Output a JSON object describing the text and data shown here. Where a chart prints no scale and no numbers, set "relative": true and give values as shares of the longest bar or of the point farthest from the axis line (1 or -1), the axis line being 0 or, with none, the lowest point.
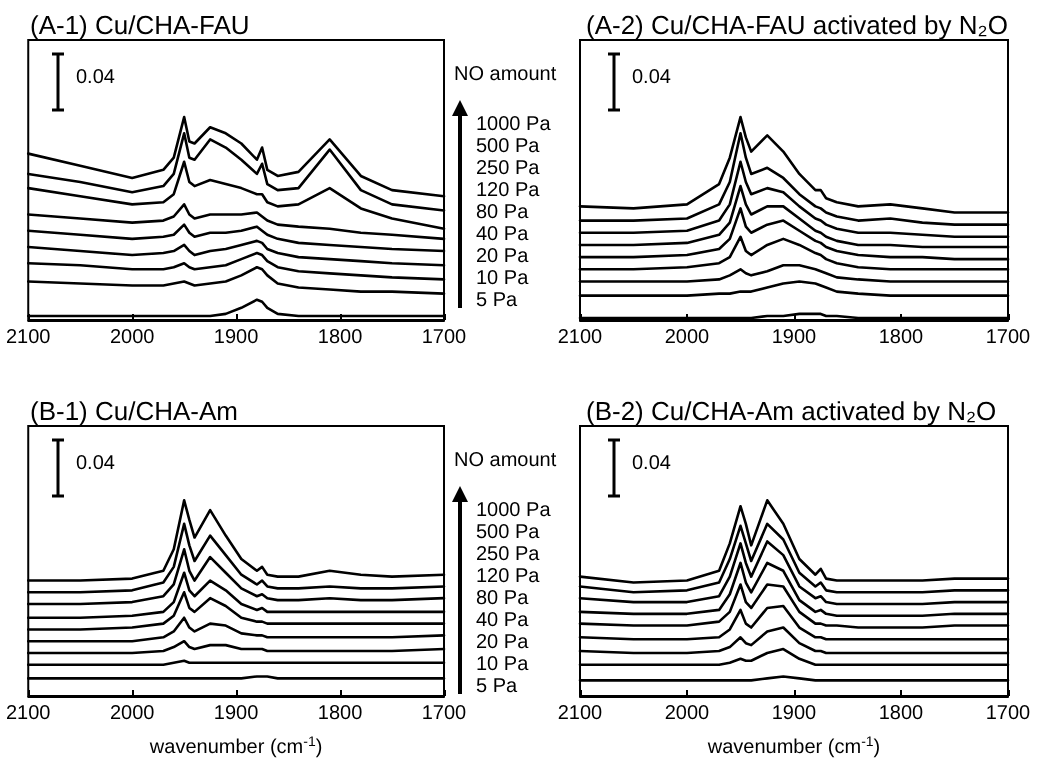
{
  "chart_data": [
    {
      "type": "line",
      "title": "(A-1) Cu/CHA-FAU",
      "relative": true,
      "xlim": [
        2100,
        1700
      ],
      "xticks": [
        2100,
        2000,
        1900,
        1800,
        1700
      ],
      "grid": false,
      "marker": "none",
      "line_style": "solid",
      "legend": "right",
      "legend_title": "NO amount",
      "annotations": [
        "0.04"
      ],
      "x": [
        2100,
        2050,
        2000,
        1970,
        1960,
        1950,
        1945,
        1940,
        1925,
        1910,
        1895,
        1880,
        1875,
        1870,
        1860,
        1840,
        1810,
        1780,
        1750,
        1700
      ],
      "series": [
        {
          "name": "5 Pa",
          "color": "#000000",
          "values": [
            0.02,
            0.02,
            0.02,
            0.02,
            0.02,
            0.02,
            0.02,
            0.02,
            0.02,
            0.03,
            0.06,
            0.1,
            0.09,
            0.06,
            0.03,
            0.02,
            0.02,
            0.02,
            0.02,
            0.02
          ]
        },
        {
          "name": "10 Pa",
          "color": "#000000",
          "values": [
            0.19,
            0.18,
            0.17,
            0.17,
            0.18,
            0.19,
            0.18,
            0.17,
            0.18,
            0.19,
            0.22,
            0.26,
            0.25,
            0.22,
            0.18,
            0.16,
            0.15,
            0.14,
            0.14,
            0.13
          ]
        },
        {
          "name": "20 Pa",
          "color": "#000000",
          "values": [
            0.28,
            0.27,
            0.25,
            0.25,
            0.26,
            0.28,
            0.26,
            0.25,
            0.26,
            0.27,
            0.3,
            0.33,
            0.32,
            0.29,
            0.26,
            0.24,
            0.23,
            0.22,
            0.21,
            0.2
          ]
        },
        {
          "name": "40 Pa",
          "color": "#000000",
          "values": [
            0.36,
            0.34,
            0.32,
            0.33,
            0.34,
            0.37,
            0.34,
            0.32,
            0.34,
            0.35,
            0.37,
            0.39,
            0.38,
            0.35,
            0.33,
            0.31,
            0.3,
            0.29,
            0.28,
            0.27
          ]
        },
        {
          "name": "80 Pa",
          "color": "#000000",
          "values": [
            0.44,
            0.42,
            0.4,
            0.41,
            0.42,
            0.47,
            0.43,
            0.41,
            0.43,
            0.43,
            0.44,
            0.46,
            0.44,
            0.42,
            0.4,
            0.38,
            0.37,
            0.36,
            0.35,
            0.34
          ]
        },
        {
          "name": "120 Pa",
          "color": "#000000",
          "values": [
            0.52,
            0.5,
            0.48,
            0.49,
            0.51,
            0.57,
            0.52,
            0.5,
            0.52,
            0.52,
            0.52,
            0.53,
            0.51,
            0.49,
            0.47,
            0.46,
            0.45,
            0.43,
            0.42,
            0.4
          ]
        },
        {
          "name": "250 Pa",
          "color": "#000000",
          "values": [
            0.65,
            0.61,
            0.57,
            0.58,
            0.62,
            0.78,
            0.68,
            0.66,
            0.69,
            0.67,
            0.65,
            0.62,
            0.62,
            0.58,
            0.56,
            0.57,
            0.65,
            0.55,
            0.5,
            0.45
          ]
        },
        {
          "name": "500 Pa",
          "color": "#000000",
          "values": [
            0.72,
            0.68,
            0.63,
            0.66,
            0.72,
            0.92,
            0.8,
            0.79,
            0.89,
            0.85,
            0.79,
            0.72,
            0.77,
            0.67,
            0.64,
            0.65,
            0.84,
            0.64,
            0.57,
            0.54
          ]
        },
        {
          "name": "1000 Pa",
          "color": "#000000",
          "values": [
            0.82,
            0.76,
            0.7,
            0.74,
            0.8,
            1.0,
            0.88,
            0.87,
            0.95,
            0.92,
            0.87,
            0.79,
            0.85,
            0.74,
            0.71,
            0.73,
            0.89,
            0.71,
            0.64,
            0.61
          ]
        }
      ]
    },
    {
      "type": "line",
      "title": "(A-2) Cu/CHA-FAU activated by N₂O",
      "relative": true,
      "xlim": [
        2100,
        1700
      ],
      "xticks": [
        2100,
        2000,
        1900,
        1800,
        1700
      ],
      "grid": false,
      "marker": "none",
      "line_style": "solid",
      "annotations": [
        "0.04"
      ],
      "x": [
        2100,
        2050,
        2000,
        1970,
        1960,
        1950,
        1945,
        1940,
        1925,
        1910,
        1895,
        1880,
        1875,
        1870,
        1860,
        1840,
        1810,
        1780,
        1750,
        1700
      ],
      "series": [
        {
          "color": "#000000",
          "values": [
            0.01,
            0.01,
            0.01,
            0.01,
            0.01,
            0.01,
            0.01,
            0.01,
            0.02,
            0.02,
            0.03,
            0.03,
            0.03,
            0.02,
            0.02,
            0.01,
            0.01,
            0.01,
            0.01,
            0.01
          ]
        },
        {
          "color": "#000000",
          "values": [
            0.12,
            0.12,
            0.12,
            0.13,
            0.13,
            0.14,
            0.14,
            0.14,
            0.16,
            0.18,
            0.19,
            0.18,
            0.17,
            0.16,
            0.14,
            0.13,
            0.12,
            0.12,
            0.12,
            0.12
          ]
        },
        {
          "color": "#000000",
          "values": [
            0.19,
            0.19,
            0.19,
            0.2,
            0.22,
            0.25,
            0.23,
            0.22,
            0.24,
            0.27,
            0.27,
            0.25,
            0.24,
            0.23,
            0.21,
            0.2,
            0.19,
            0.19,
            0.19,
            0.19
          ]
        },
        {
          "color": "#000000",
          "values": [
            0.25,
            0.25,
            0.26,
            0.28,
            0.31,
            0.41,
            0.34,
            0.32,
            0.37,
            0.4,
            0.37,
            0.33,
            0.32,
            0.3,
            0.28,
            0.26,
            0.25,
            0.25,
            0.25,
            0.25
          ]
        },
        {
          "color": "#000000",
          "values": [
            0.31,
            0.31,
            0.32,
            0.35,
            0.4,
            0.55,
            0.46,
            0.43,
            0.47,
            0.49,
            0.44,
            0.39,
            0.38,
            0.36,
            0.34,
            0.32,
            0.31,
            0.31,
            0.3,
            0.3
          ]
        },
        {
          "color": "#000000",
          "values": [
            0.37,
            0.37,
            0.38,
            0.42,
            0.48,
            0.66,
            0.57,
            0.52,
            0.56,
            0.56,
            0.5,
            0.44,
            0.43,
            0.41,
            0.39,
            0.37,
            0.37,
            0.36,
            0.36,
            0.36
          ]
        },
        {
          "color": "#000000",
          "values": [
            0.43,
            0.43,
            0.44,
            0.49,
            0.57,
            0.78,
            0.68,
            0.62,
            0.65,
            0.63,
            0.56,
            0.5,
            0.49,
            0.47,
            0.45,
            0.43,
            0.43,
            0.42,
            0.41,
            0.41
          ]
        },
        {
          "color": "#000000",
          "values": [
            0.49,
            0.49,
            0.5,
            0.57,
            0.68,
            0.92,
            0.8,
            0.72,
            0.75,
            0.7,
            0.62,
            0.56,
            0.55,
            0.53,
            0.51,
            0.49,
            0.5,
            0.48,
            0.47,
            0.47
          ]
        },
        {
          "color": "#000000",
          "values": [
            0.56,
            0.55,
            0.57,
            0.67,
            0.8,
            1.0,
            0.9,
            0.83,
            0.91,
            0.83,
            0.72,
            0.64,
            0.64,
            0.6,
            0.58,
            0.56,
            0.57,
            0.55,
            0.53,
            0.53
          ]
        }
      ]
    },
    {
      "type": "line",
      "title": "(B-1) Cu/CHA-Am",
      "xlabel": "wavenumber (cm$^{-1}$)",
      "relative": true,
      "xlim": [
        2100,
        1700
      ],
      "xticks": [
        2100,
        2000,
        1900,
        1800,
        1700
      ],
      "grid": false,
      "marker": "none",
      "line_style": "solid",
      "legend": "right",
      "legend_title": "NO amount",
      "annotations": [
        "0.04"
      ],
      "x": [
        2100,
        2050,
        2000,
        1970,
        1960,
        1950,
        1945,
        1940,
        1925,
        1910,
        1895,
        1880,
        1875,
        1870,
        1860,
        1840,
        1810,
        1780,
        1750,
        1700
      ],
      "series": [
        {
          "name": "5 Pa",
          "color": "#000000",
          "values": [
            0.09,
            0.09,
            0.09,
            0.09,
            0.09,
            0.09,
            0.09,
            0.09,
            0.09,
            0.09,
            0.09,
            0.1,
            0.1,
            0.1,
            0.09,
            0.09,
            0.09,
            0.09,
            0.09,
            0.09
          ]
        },
        {
          "name": "10 Pa",
          "color": "#000000",
          "values": [
            0.16,
            0.16,
            0.16,
            0.16,
            0.17,
            0.18,
            0.17,
            0.17,
            0.17,
            0.17,
            0.17,
            0.17,
            0.17,
            0.17,
            0.17,
            0.17,
            0.17,
            0.17,
            0.17,
            0.17
          ]
        },
        {
          "name": "20 Pa",
          "color": "#000000",
          "values": [
            0.22,
            0.22,
            0.22,
            0.23,
            0.25,
            0.28,
            0.25,
            0.24,
            0.26,
            0.26,
            0.24,
            0.24,
            0.24,
            0.23,
            0.23,
            0.23,
            0.23,
            0.23,
            0.23,
            0.24
          ]
        },
        {
          "name": "40 Pa",
          "color": "#000000",
          "values": [
            0.28,
            0.28,
            0.28,
            0.3,
            0.33,
            0.4,
            0.35,
            0.33,
            0.37,
            0.36,
            0.32,
            0.31,
            0.31,
            0.3,
            0.3,
            0.3,
            0.3,
            0.3,
            0.3,
            0.31
          ]
        },
        {
          "name": "80 Pa",
          "color": "#000000",
          "values": [
            0.34,
            0.34,
            0.35,
            0.37,
            0.41,
            0.53,
            0.45,
            0.43,
            0.5,
            0.46,
            0.4,
            0.38,
            0.38,
            0.37,
            0.37,
            0.37,
            0.37,
            0.37,
            0.37,
            0.37
          ]
        },
        {
          "name": "120 Pa",
          "color": "#000000",
          "values": [
            0.4,
            0.4,
            0.41,
            0.43,
            0.48,
            0.63,
            0.54,
            0.51,
            0.59,
            0.54,
            0.47,
            0.44,
            0.45,
            0.43,
            0.43,
            0.43,
            0.43,
            0.43,
            0.43,
            0.43
          ]
        },
        {
          "name": "250 Pa",
          "color": "#000000",
          "values": [
            0.47,
            0.47,
            0.48,
            0.51,
            0.57,
            0.75,
            0.64,
            0.59,
            0.71,
            0.63,
            0.55,
            0.51,
            0.52,
            0.5,
            0.49,
            0.49,
            0.5,
            0.49,
            0.49,
            0.5
          ]
        },
        {
          "name": "500 Pa",
          "color": "#000000",
          "values": [
            0.53,
            0.53,
            0.54,
            0.58,
            0.66,
            0.88,
            0.77,
            0.69,
            0.82,
            0.72,
            0.62,
            0.57,
            0.59,
            0.56,
            0.55,
            0.55,
            0.56,
            0.55,
            0.55,
            0.56
          ]
        },
        {
          "name": "1000 Pa",
          "color": "#000000",
          "values": [
            0.59,
            0.59,
            0.6,
            0.64,
            0.75,
            1.0,
            0.9,
            0.81,
            0.95,
            0.82,
            0.7,
            0.64,
            0.66,
            0.62,
            0.61,
            0.61,
            0.64,
            0.62,
            0.61,
            0.62
          ]
        }
      ]
    },
    {
      "type": "line",
      "title": "(B-2) Cu/CHA-Am activated by N₂O",
      "xlabel": "wavenumber (cm$^{-1}$)",
      "relative": true,
      "xlim": [
        2100,
        1700
      ],
      "xticks": [
        2100,
        2000,
        1900,
        1800,
        1700
      ],
      "grid": false,
      "marker": "none",
      "line_style": "solid",
      "annotations": [
        "0.04"
      ],
      "x": [
        2100,
        2050,
        2000,
        1970,
        1960,
        1950,
        1945,
        1940,
        1925,
        1910,
        1895,
        1880,
        1875,
        1870,
        1860,
        1840,
        1810,
        1780,
        1750,
        1700
      ],
      "series": [
        {
          "color": "#000000",
          "values": [
            0.08,
            0.08,
            0.08,
            0.08,
            0.08,
            0.08,
            0.08,
            0.08,
            0.09,
            0.1,
            0.09,
            0.08,
            0.08,
            0.08,
            0.08,
            0.08,
            0.08,
            0.08,
            0.08,
            0.08
          ]
        },
        {
          "color": "#000000",
          "values": [
            0.16,
            0.16,
            0.16,
            0.16,
            0.17,
            0.19,
            0.18,
            0.18,
            0.22,
            0.24,
            0.19,
            0.16,
            0.16,
            0.16,
            0.16,
            0.16,
            0.16,
            0.16,
            0.16,
            0.16
          ]
        },
        {
          "color": "#000000",
          "values": [
            0.23,
            0.22,
            0.22,
            0.23,
            0.25,
            0.3,
            0.27,
            0.26,
            0.33,
            0.35,
            0.27,
            0.23,
            0.23,
            0.22,
            0.22,
            0.22,
            0.22,
            0.22,
            0.22,
            0.22
          ]
        },
        {
          "color": "#000000",
          "values": [
            0.3,
            0.29,
            0.29,
            0.3,
            0.34,
            0.44,
            0.37,
            0.35,
            0.45,
            0.46,
            0.35,
            0.3,
            0.3,
            0.29,
            0.29,
            0.29,
            0.29,
            0.29,
            0.29,
            0.29
          ]
        },
        {
          "color": "#000000",
          "values": [
            0.37,
            0.36,
            0.36,
            0.38,
            0.43,
            0.57,
            0.48,
            0.45,
            0.57,
            0.56,
            0.43,
            0.37,
            0.37,
            0.36,
            0.36,
            0.35,
            0.35,
            0.35,
            0.36,
            0.36
          ]
        },
        {
          "color": "#000000",
          "values": [
            0.43,
            0.42,
            0.42,
            0.44,
            0.52,
            0.68,
            0.58,
            0.53,
            0.68,
            0.64,
            0.49,
            0.43,
            0.44,
            0.42,
            0.41,
            0.41,
            0.41,
            0.41,
            0.42,
            0.42
          ]
        },
        {
          "color": "#000000",
          "values": [
            0.5,
            0.48,
            0.48,
            0.51,
            0.61,
            0.78,
            0.68,
            0.61,
            0.79,
            0.72,
            0.56,
            0.5,
            0.51,
            0.48,
            0.47,
            0.47,
            0.47,
            0.47,
            0.48,
            0.48
          ]
        },
        {
          "color": "#000000",
          "values": [
            0.56,
            0.53,
            0.54,
            0.58,
            0.7,
            0.87,
            0.78,
            0.69,
            0.88,
            0.8,
            0.63,
            0.56,
            0.58,
            0.54,
            0.53,
            0.53,
            0.53,
            0.53,
            0.54,
            0.54
          ]
        },
        {
          "color": "#000000",
          "values": [
            0.61,
            0.58,
            0.59,
            0.64,
            0.78,
            0.97,
            0.88,
            0.77,
            1.0,
            0.88,
            0.7,
            0.62,
            0.65,
            0.6,
            0.59,
            0.59,
            0.59,
            0.59,
            0.6,
            0.6
          ]
        }
      ]
    }
  ]
}
